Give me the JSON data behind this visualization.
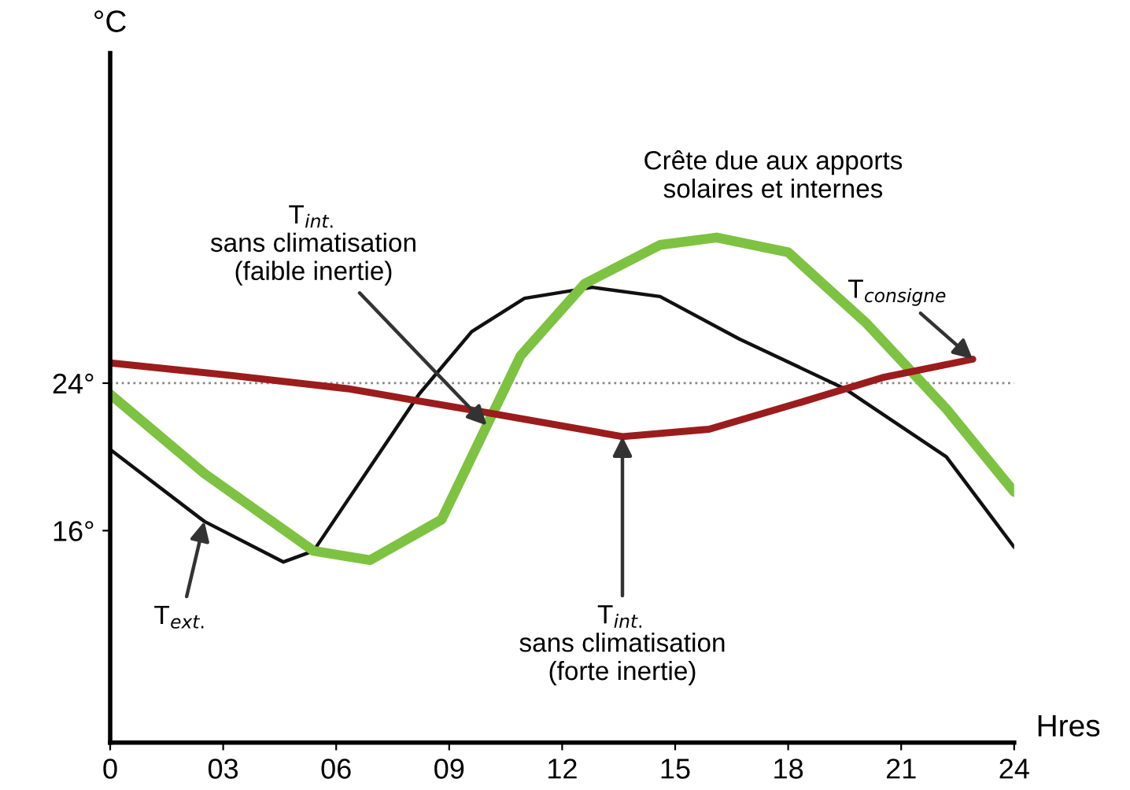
{
  "chart_data": {
    "type": "line",
    "xlabel": "Hres",
    "ylabel": "°C",
    "xlim": [
      0,
      24
    ],
    "ylim": [
      4.5,
      42
    ],
    "xticks": [
      0,
      {
        "value": 3,
        "label": "03"
      },
      {
        "value": 6,
        "label": "06"
      },
      {
        "value": 9,
        "label": "09"
      },
      12,
      15,
      18,
      21,
      24
    ],
    "yticks": [
      {
        "value": 16,
        "label": "16°"
      },
      {
        "value": 24,
        "label": "24°"
      }
    ],
    "grid": false,
    "line_style": "solid",
    "marker": "none",
    "series": [
      {
        "color": "#111111",
        "x": [
          0,
          2.5,
          4.6,
          5.4,
          8.2,
          9.6,
          11.0,
          12.8,
          14.6,
          16.7,
          19.5,
          22.2,
          24
        ],
        "values": [
          20.4,
          16.5,
          14.3,
          14.9,
          23.4,
          26.8,
          28.6,
          29.2,
          28.7,
          26.4,
          23.7,
          20,
          15.1
        ]
      },
      {
        "color": "#7ec242",
        "x": [
          0,
          2.5,
          5.4,
          6.9,
          8.8,
          10,
          10.9,
          12.6,
          14.6,
          16.1,
          18,
          20.1,
          22.2,
          24
        ],
        "values": [
          23.4,
          19.1,
          14.9,
          14.4,
          16.6,
          21.7,
          25.5,
          29.4,
          31.5,
          31.9,
          31.1,
          27.2,
          22.6,
          18.1
        ]
      },
      {
        "color": "#9b1c1c",
        "x": [
          0,
          3.3,
          6.3,
          10,
          13.6,
          15.9,
          18.4,
          20.5,
          22.9
        ],
        "values": [
          25.1,
          24.4,
          23.7,
          22.4,
          21.1,
          21.5,
          23,
          24.3,
          25.3
        ]
      }
    ],
    "ref_lines": [
      {
        "axis": "y",
        "value": 24,
        "color": "#888888",
        "line_style": "dotted"
      }
    ],
    "annotations": [
      {
        "text": "T$_{int.}$\nsans climatisation\n(faible inertie)",
        "x": 10,
        "y": 21.7
      },
      {
        "text": "T$_{ext.}$",
        "x": 2.5,
        "y": 16.5
      },
      {
        "text": "T$_{int.}$\nsans climatisation\n(forte inertie)",
        "x": 13.6,
        "y": 21.1
      },
      {
        "text": "T$_{consigne}$",
        "x": 22.9,
        "y": 25.3
      },
      {
        "text": "Crête due aux apports\nsolaires et internes",
        "x": 16.1,
        "y": 31.9
      }
    ]
  }
}
